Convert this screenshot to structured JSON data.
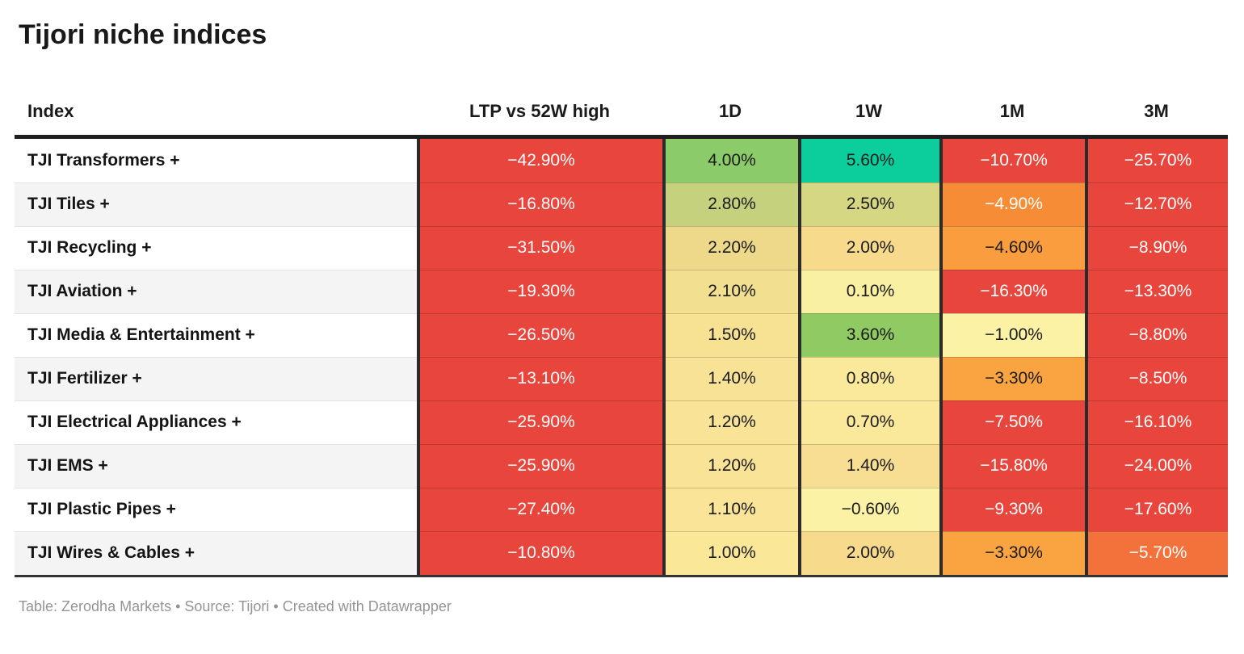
{
  "title": "Tijori niche indices",
  "footer": {
    "text": "Table: Zerodha Markets • Source: Tijori • Created with Datawrapper"
  },
  "table": {
    "columns": [
      "Index",
      "LTP vs 52W high",
      "1D",
      "1W",
      "1M",
      "3M"
    ],
    "rows": [
      {
        "index": "TJI Transformers +",
        "cells": [
          {
            "value": "−42.90%",
            "bg": "#e8453c",
            "fg": "#ffffff"
          },
          {
            "value": "4.00%",
            "bg": "#8ccb69",
            "fg": "#1a1a1a"
          },
          {
            "value": "5.60%",
            "bg": "#0bce9c",
            "fg": "#1a1a1a"
          },
          {
            "value": "−10.70%",
            "bg": "#e8453c",
            "fg": "#ffffff"
          },
          {
            "value": "−25.70%",
            "bg": "#e8453c",
            "fg": "#ffffff"
          }
        ]
      },
      {
        "index": "TJI Tiles +",
        "cells": [
          {
            "value": "−16.80%",
            "bg": "#e8453c",
            "fg": "#ffffff"
          },
          {
            "value": "2.80%",
            "bg": "#c6d17e",
            "fg": "#1a1a1a"
          },
          {
            "value": "2.50%",
            "bg": "#d5d783",
            "fg": "#1a1a1a"
          },
          {
            "value": "−4.90%",
            "bg": "#f68c35",
            "fg": "#ffffff"
          },
          {
            "value": "−12.70%",
            "bg": "#e8453c",
            "fg": "#ffffff"
          }
        ]
      },
      {
        "index": "TJI Recycling +",
        "cells": [
          {
            "value": "−31.50%",
            "bg": "#e8453c",
            "fg": "#ffffff"
          },
          {
            "value": "2.20%",
            "bg": "#eed98a",
            "fg": "#1a1a1a"
          },
          {
            "value": "2.00%",
            "bg": "#f8da8c",
            "fg": "#1a1a1a"
          },
          {
            "value": "−4.60%",
            "bg": "#f99d3f",
            "fg": "#1a1a1a"
          },
          {
            "value": "−8.90%",
            "bg": "#e8453c",
            "fg": "#ffffff"
          }
        ]
      },
      {
        "index": "TJI Aviation +",
        "cells": [
          {
            "value": "−19.30%",
            "bg": "#e8453c",
            "fg": "#ffffff"
          },
          {
            "value": "2.10%",
            "bg": "#f2df90",
            "fg": "#1a1a1a"
          },
          {
            "value": "0.10%",
            "bg": "#faf0a2",
            "fg": "#1a1a1a"
          },
          {
            "value": "−16.30%",
            "bg": "#e8453c",
            "fg": "#ffffff"
          },
          {
            "value": "−13.30%",
            "bg": "#e8453c",
            "fg": "#ffffff"
          }
        ]
      },
      {
        "index": "TJI Media & Entertainment +",
        "cells": [
          {
            "value": "−26.50%",
            "bg": "#e8453c",
            "fg": "#ffffff"
          },
          {
            "value": "1.50%",
            "bg": "#f7e294",
            "fg": "#1a1a1a"
          },
          {
            "value": "3.60%",
            "bg": "#8fca62",
            "fg": "#1a1a1a"
          },
          {
            "value": "−1.00%",
            "bg": "#fbf2a6",
            "fg": "#1a1a1a"
          },
          {
            "value": "−8.80%",
            "bg": "#e8453c",
            "fg": "#ffffff"
          }
        ]
      },
      {
        "index": "TJI Fertilizer +",
        "cells": [
          {
            "value": "−13.10%",
            "bg": "#e8453c",
            "fg": "#ffffff"
          },
          {
            "value": "1.40%",
            "bg": "#f8e295",
            "fg": "#1a1a1a"
          },
          {
            "value": "0.80%",
            "bg": "#fae89b",
            "fg": "#1a1a1a"
          },
          {
            "value": "−3.30%",
            "bg": "#f9a441",
            "fg": "#1a1a1a"
          },
          {
            "value": "−8.50%",
            "bg": "#e8453c",
            "fg": "#ffffff"
          }
        ]
      },
      {
        "index": "TJI Electrical Appliances +",
        "cells": [
          {
            "value": "−25.90%",
            "bg": "#e8453c",
            "fg": "#ffffff"
          },
          {
            "value": "1.20%",
            "bg": "#f9e396",
            "fg": "#1a1a1a"
          },
          {
            "value": "0.70%",
            "bg": "#fae89b",
            "fg": "#1a1a1a"
          },
          {
            "value": "−7.50%",
            "bg": "#e8453c",
            "fg": "#ffffff"
          },
          {
            "value": "−16.10%",
            "bg": "#e8453c",
            "fg": "#ffffff"
          }
        ]
      },
      {
        "index": "TJI EMS +",
        "cells": [
          {
            "value": "−25.90%",
            "bg": "#e8453c",
            "fg": "#ffffff"
          },
          {
            "value": "1.20%",
            "bg": "#f9e396",
            "fg": "#1a1a1a"
          },
          {
            "value": "1.40%",
            "bg": "#f8de92",
            "fg": "#1a1a1a"
          },
          {
            "value": "−15.80%",
            "bg": "#e8453c",
            "fg": "#ffffff"
          },
          {
            "value": "−24.00%",
            "bg": "#e8453c",
            "fg": "#ffffff"
          }
        ]
      },
      {
        "index": "TJI Plastic Pipes +",
        "cells": [
          {
            "value": "−27.40%",
            "bg": "#e8453c",
            "fg": "#ffffff"
          },
          {
            "value": "1.10%",
            "bg": "#f9e497",
            "fg": "#1a1a1a"
          },
          {
            "value": "−0.60%",
            "bg": "#fbf2a6",
            "fg": "#1a1a1a"
          },
          {
            "value": "−9.30%",
            "bg": "#e8453c",
            "fg": "#ffffff"
          },
          {
            "value": "−17.60%",
            "bg": "#e8453c",
            "fg": "#ffffff"
          }
        ]
      },
      {
        "index": "TJI Wires & Cables +",
        "cells": [
          {
            "value": "−10.80%",
            "bg": "#e8453c",
            "fg": "#ffffff"
          },
          {
            "value": "1.00%",
            "bg": "#fae798",
            "fg": "#1a1a1a"
          },
          {
            "value": "2.00%",
            "bg": "#f8da8c",
            "fg": "#1a1a1a"
          },
          {
            "value": "−3.30%",
            "bg": "#f9a441",
            "fg": "#1a1a1a"
          },
          {
            "value": "−5.70%",
            "bg": "#f3713b",
            "fg": "#ffffff"
          }
        ]
      }
    ]
  },
  "chart_data": {
    "type": "table",
    "title": "Tijori niche indices",
    "columns": [
      "Index",
      "LTP vs 52W high",
      "1D",
      "1W",
      "1M",
      "3M"
    ],
    "unit": "percent",
    "rows": [
      [
        "TJI Transformers +",
        -42.9,
        4.0,
        5.6,
        -10.7,
        -25.7
      ],
      [
        "TJI Tiles +",
        -16.8,
        2.8,
        2.5,
        -4.9,
        -12.7
      ],
      [
        "TJI Recycling +",
        -31.5,
        2.2,
        2.0,
        -4.6,
        -8.9
      ],
      [
        "TJI Aviation +",
        -19.3,
        2.1,
        0.1,
        -16.3,
        -13.3
      ],
      [
        "TJI Media & Entertainment +",
        -26.5,
        1.5,
        3.6,
        -1.0,
        -8.8
      ],
      [
        "TJI Fertilizer +",
        -13.1,
        1.4,
        0.8,
        -3.3,
        -8.5
      ],
      [
        "TJI Electrical Appliances +",
        -25.9,
        1.2,
        0.7,
        -7.5,
        -16.1
      ],
      [
        "TJI EMS +",
        -25.9,
        1.2,
        1.4,
        -15.8,
        -24.0
      ],
      [
        "TJI Plastic Pipes +",
        -27.4,
        1.1,
        -0.6,
        -9.3,
        -17.6
      ],
      [
        "TJI Wires & Cables +",
        -10.8,
        1.0,
        2.0,
        -3.3,
        -5.7
      ]
    ],
    "heatmap_colors": {
      "strong_negative": "#e8453c",
      "negative": "#f68c35",
      "mild_negative": "#f9a441",
      "neutral": "#fbf2a6",
      "positive": "#c6d17e",
      "strong_positive": "#8ccb69",
      "max_positive": "#0bce9c"
    },
    "footer": "Table: Zerodha Markets • Source: Tijori • Created with Datawrapper"
  }
}
